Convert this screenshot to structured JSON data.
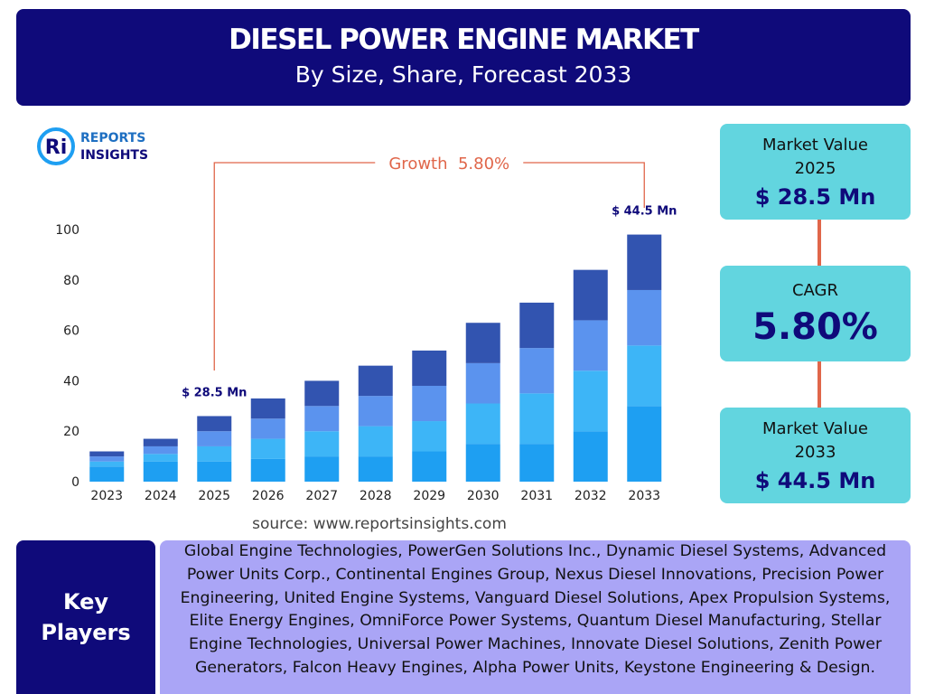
{
  "header": {
    "title": "DIESEL POWER ENGINE MARKET",
    "subtitle": "By Size, Share, Forecast 2033"
  },
  "logo": {
    "line1": "REPORTS",
    "line2": "INSIGHTS"
  },
  "chart_data": {
    "type": "bar",
    "stacked": true,
    "categories": [
      "2023",
      "2024",
      "2025",
      "2026",
      "2027",
      "2028",
      "2029",
      "2030",
      "2031",
      "2032",
      "2033"
    ],
    "series": [
      {
        "color": "#1e9ff2",
        "values": [
          6,
          8,
          8,
          9,
          10,
          10,
          12,
          15,
          15,
          20,
          30
        ]
      },
      {
        "color": "#3db5f7",
        "values": [
          2,
          3,
          6,
          8,
          10,
          12,
          12,
          16,
          20,
          24,
          24
        ]
      },
      {
        "color": "#5b93ee",
        "values": [
          2,
          3,
          6,
          8,
          10,
          12,
          14,
          16,
          18,
          20,
          22
        ]
      },
      {
        "color": "#3254b0",
        "values": [
          2,
          3,
          6,
          8,
          10,
          12,
          14,
          16,
          18,
          20,
          22
        ]
      }
    ],
    "ylim": [
      0,
      100
    ],
    "yticks": [
      0,
      20,
      40,
      60,
      80,
      100
    ],
    "grid": false,
    "annotations": [
      {
        "text": "$ 28.5 Mn",
        "category": "2025"
      },
      {
        "text": "$ 44.5 Mn",
        "category": "2033"
      }
    ],
    "growth": {
      "text": "Growth  5.80%",
      "from": "2025",
      "to": "2033"
    },
    "source": "source: www.reportsinsights.com"
  },
  "panels": [
    {
      "label_lines": [
        "Market Value",
        "2025"
      ],
      "value": "$ 28.5 Mn"
    },
    {
      "label_lines": [
        "CAGR"
      ],
      "value": "5.80%"
    },
    {
      "label_lines": [
        "Market Value",
        "2033"
      ],
      "value": "$ 44.5 Mn"
    }
  ],
  "key_players": {
    "label": "Key Players",
    "text": "Global Engine Technologies, PowerGen Solutions Inc., Dynamic Diesel Systems, Advanced Power Units Corp., Continental Engines Group, Nexus Diesel Innovations, Precision Power Engineering, United Engine Systems, Vanguard Diesel Solutions, Apex Propulsion Systems, Elite Energy Engines, OmniForce Power Systems, Quantum Diesel Manufacturing, Stellar Engine Technologies, Universal Power Machines, Innovate Diesel Solutions, Zenith Power Generators, Falcon Heavy Engines, Alpha Power Units, Keystone Engineering & Design."
  }
}
